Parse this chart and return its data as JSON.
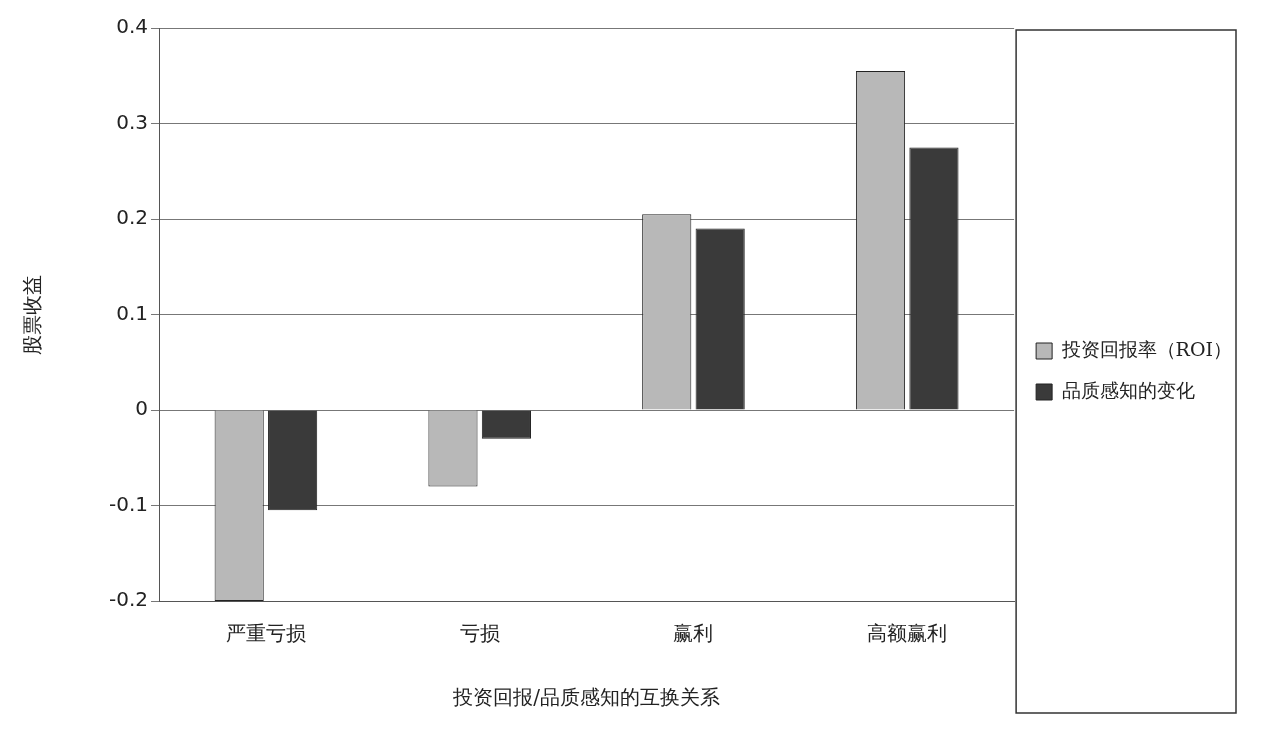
{
  "chart_data": {
    "type": "bar",
    "xlabel": "投资回报/品质感知的互换关系",
    "ylabel": "股票收益",
    "categories": [
      "严重亏损",
      "亏损",
      "赢利",
      "高额赢利"
    ],
    "series": [
      {
        "name": "投资回报率（ROI）",
        "color": "#b8b8b8",
        "values": [
          -0.2,
          -0.08,
          0.205,
          0.355
        ]
      },
      {
        "name": "品质感知的变化",
        "color": "#3a3a3a",
        "values": [
          -0.105,
          -0.03,
          0.19,
          0.275
        ]
      }
    ],
    "ylim": [
      -0.2,
      0.4
    ],
    "yticks": [
      -0.2,
      -0.1,
      0,
      0.1,
      0.2,
      0.3,
      0.4
    ],
    "grid": "y",
    "legend": "right"
  }
}
